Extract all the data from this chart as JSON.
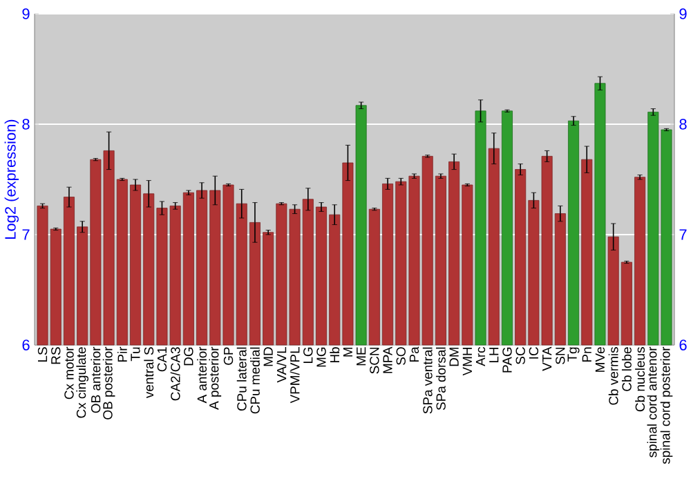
{
  "chart_data": {
    "type": "bar",
    "ylabel": "Log2 (expression)",
    "categories": [
      "LS",
      "RS",
      "Cx motor",
      "Cx cingulate",
      "OB anterior",
      "OB posterior",
      "Pir",
      "Tu",
      "ventral S",
      "CA1",
      "CA2/CA3",
      "DG",
      "A anterior",
      "A posterior",
      "GP",
      "CPu lateral",
      "CPu medial",
      "MD",
      "VA/VL",
      "VPM/VPL",
      "LG",
      "MG",
      "Hb",
      "M",
      "ME",
      "SCN",
      "MPA",
      "SO",
      "Pa",
      "SPa ventral",
      "SPa dorsal",
      "DM",
      "VMH",
      "Arc",
      "LH",
      "PAG",
      "SC",
      "IC",
      "VTA",
      "SN",
      "Tg",
      "Pn",
      "MVe",
      "Cb vermis",
      "Cb lobe",
      "Cb nucleus",
      "spinal cord antenor",
      "spinal cord posterior"
    ],
    "values": [
      7.26,
      7.05,
      7.34,
      7.07,
      7.68,
      7.76,
      7.5,
      7.45,
      7.37,
      7.24,
      7.26,
      7.38,
      7.4,
      7.4,
      7.45,
      7.28,
      7.11,
      7.02,
      7.28,
      7.23,
      7.32,
      7.25,
      7.18,
      7.65,
      8.17,
      7.23,
      7.46,
      7.48,
      7.53,
      7.71,
      7.53,
      7.66,
      7.45,
      8.12,
      7.78,
      8.12,
      7.59,
      7.31,
      7.71,
      7.19,
      8.03,
      7.68,
      8.37,
      6.98,
      6.75,
      7.52,
      8.11,
      7.95
    ],
    "errors": [
      0.02,
      0.01,
      0.09,
      0.05,
      0.01,
      0.17,
      0.01,
      0.05,
      0.12,
      0.06,
      0.03,
      0.02,
      0.07,
      0.13,
      0.01,
      0.13,
      0.18,
      0.02,
      0.01,
      0.04,
      0.1,
      0.04,
      0.09,
      0.16,
      0.03,
      0.01,
      0.05,
      0.03,
      0.02,
      0.01,
      0.02,
      0.07,
      0.01,
      0.1,
      0.14,
      0.01,
      0.05,
      0.07,
      0.05,
      0.07,
      0.04,
      0.12,
      0.06,
      0.12,
      0.01,
      0.02,
      0.03,
      0.01
    ],
    "colors": [
      "#b03434",
      "#b03434",
      "#b03434",
      "#b03434",
      "#b03434",
      "#b03434",
      "#b03434",
      "#b03434",
      "#b03434",
      "#b03434",
      "#b03434",
      "#b03434",
      "#b03434",
      "#b03434",
      "#b03434",
      "#b03434",
      "#b03434",
      "#b03434",
      "#b03434",
      "#b03434",
      "#b03434",
      "#b03434",
      "#b03434",
      "#b03434",
      "#2e9e2e",
      "#b03434",
      "#b03434",
      "#b03434",
      "#b03434",
      "#b03434",
      "#b03434",
      "#b03434",
      "#b03434",
      "#2e9e2e",
      "#b03434",
      "#2e9e2e",
      "#b03434",
      "#b03434",
      "#b03434",
      "#b03434",
      "#2e9e2e",
      "#b03434",
      "#2e9e2e",
      "#b03434",
      "#b03434",
      "#b03434",
      "#2e9e2e",
      "#2e9e2e"
    ],
    "ylim": [
      6,
      9
    ],
    "yticks": [
      6,
      7,
      8,
      9
    ],
    "y2lim": [
      6,
      9
    ],
    "y2ticks": [
      6,
      7,
      8,
      9
    ],
    "grid": "y"
  }
}
